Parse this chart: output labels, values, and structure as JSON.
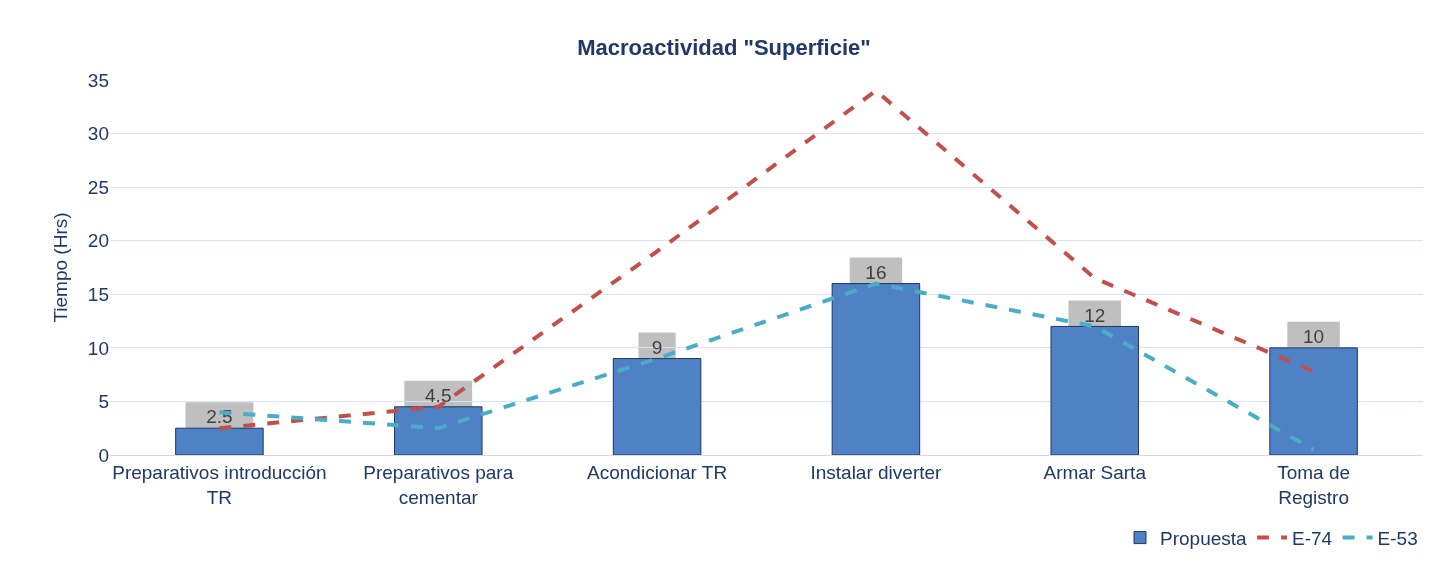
{
  "chart_data": {
    "type": "bar",
    "title": "Macroactividad \"Superficie\"",
    "ylabel": "Tiempo (Hrs)",
    "categories": [
      "Preparativos introducción TR",
      "Preparativos para cementar",
      "Acondicionar TR",
      "Instalar diverter",
      "Armar Sarta",
      "Toma de Registro"
    ],
    "series": [
      {
        "name": "Propuesta",
        "color": "#4f81c7",
        "values": [
          2.5,
          4.5,
          9,
          16,
          12,
          10
        ],
        "value_labels": [
          "2.5",
          "4.5",
          "9",
          "16",
          "12",
          "10"
        ]
      },
      {
        "name": "E-74",
        "type": "line",
        "color": "#c0504d",
        "line_style": "dashed",
        "values": [
          2.5,
          4.5,
          19,
          34,
          16.5,
          7.8
        ]
      },
      {
        "name": "E-53",
        "type": "line",
        "color": "#4bacc6",
        "line_style": "dashed",
        "values": [
          4,
          2.5,
          9,
          16,
          12,
          0.5
        ]
      }
    ],
    "ylim": [
      0,
      35
    ],
    "yticks": [
      0,
      5,
      10,
      15,
      20,
      25,
      30,
      35
    ],
    "grid": "y",
    "legend": "bottom right",
    "marker": "none"
  }
}
